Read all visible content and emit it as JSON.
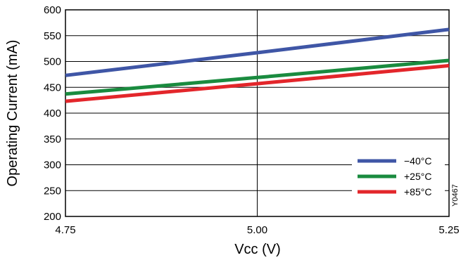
{
  "chart_data": {
    "type": "line",
    "title": "",
    "xlabel": "Vcc (V)",
    "ylabel": "Operating Current  (mA)",
    "xlim": [
      4.75,
      5.25
    ],
    "ylim": [
      200,
      600
    ],
    "xticks": [
      4.75,
      5.0,
      5.25
    ],
    "xtick_labels": [
      "4.75",
      "5.00",
      "5.25"
    ],
    "yticks": [
      200,
      250,
      300,
      350,
      400,
      450,
      500,
      550,
      600
    ],
    "ytick_labels": [
      "200",
      "250",
      "300",
      "350",
      "400",
      "450",
      "500",
      "550",
      "600"
    ],
    "grid": true,
    "legend_position": "bottom-right",
    "figure_id": "Y0467",
    "series": [
      {
        "name": "−40°C",
        "color": "#3f56a6",
        "x": [
          4.75,
          5.0,
          5.25
        ],
        "y": [
          473,
          517,
          562
        ]
      },
      {
        "name": "+25°C",
        "color": "#1a8b3f",
        "x": [
          4.75,
          5.0,
          5.25
        ],
        "y": [
          437,
          469,
          502
        ]
      },
      {
        "name": "+85°C",
        "color": "#e3262b",
        "x": [
          4.75,
          5.0,
          5.25
        ],
        "y": [
          423,
          457,
          492
        ]
      }
    ]
  }
}
